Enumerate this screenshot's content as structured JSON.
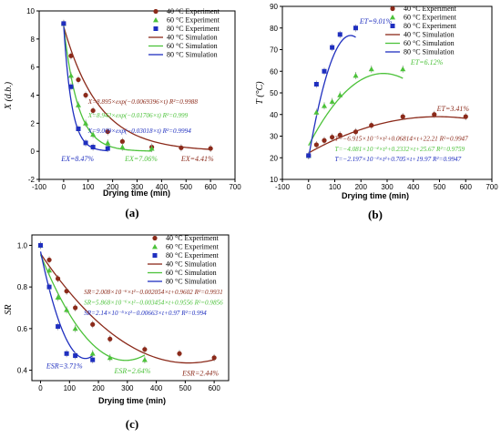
{
  "colors": {
    "s40": "#8B2A1A",
    "s60": "#4CC23A",
    "s80": "#1F2FBF",
    "err": "#9a9a9a"
  },
  "chart_data": [
    {
      "panel": "(a)",
      "type": "scatter",
      "xlabel": "Drying time (min)",
      "ylabel": "X (d.b.)",
      "xlim": [
        -100,
        700
      ],
      "ylim": [
        -2,
        10
      ],
      "xticks": [
        "-100",
        "0",
        "100",
        "200",
        "300",
        "400",
        "500",
        "600",
        "700"
      ],
      "yticks": [
        "-2",
        "0",
        "2",
        "4",
        "6",
        "8",
        "10"
      ],
      "legend_position": "top-right",
      "series": [
        {
          "name": "40 °C Experiment",
          "kind": "experiment",
          "marker": "circle",
          "color": "#8B2A1A",
          "x": [
            0,
            30,
            60,
            90,
            120,
            180,
            240,
            360,
            480,
            600
          ],
          "y": [
            9.1,
            6.8,
            5.1,
            4.0,
            2.9,
            1.4,
            0.7,
            0.3,
            0.25,
            0.2
          ]
        },
        {
          "name": "60 °C Experiment",
          "kind": "experiment",
          "marker": "triangle",
          "color": "#4CC23A",
          "x": [
            0,
            30,
            60,
            90,
            120,
            180,
            240,
            360
          ],
          "y": [
            9.1,
            5.4,
            3.3,
            2.0,
            1.2,
            0.6,
            0.3,
            0.2
          ]
        },
        {
          "name": "80 °C Experiment",
          "kind": "experiment",
          "marker": "square",
          "color": "#1F2FBF",
          "x": [
            0,
            30,
            60,
            90,
            120,
            180
          ],
          "y": [
            9.1,
            4.6,
            1.6,
            0.6,
            0.3,
            0.2
          ]
        },
        {
          "name": "40 °C Simulation",
          "kind": "simulation",
          "color": "#8B2A1A",
          "model": "exp",
          "a": 8.895,
          "k": 0.0069396,
          "tmax": 600
        },
        {
          "name": "60 °C Simulation",
          "kind": "simulation",
          "color": "#4CC23A",
          "model": "exp",
          "a": 8.942,
          "k": 0.01706,
          "tmax": 360
        },
        {
          "name": "80 °C Simulation",
          "kind": "simulation",
          "color": "#1F2FBF",
          "model": "exp",
          "a": 9.009,
          "k": 0.03018,
          "tmax": 180
        }
      ],
      "equations": [
        {
          "text": "X=8.895×exp(−0.0069396×t)   R²=0.9988",
          "color": "#8B2A1A",
          "at": [
            100,
            3.4
          ]
        },
        {
          "text": "X=8.942×exp(−0.01706×t)   R²=0.999",
          "color": "#4CC23A",
          "at": [
            100,
            2.4
          ]
        },
        {
          "text": "X=9.009×exp(−0.03018×t)   R²=0.9994",
          "color": "#1F2FBF",
          "at": [
            100,
            1.3
          ]
        }
      ],
      "annotations": [
        {
          "text": "EX=8.47%",
          "color": "#1F2FBF",
          "at": [
            -10,
            -0.7
          ]
        },
        {
          "text": "EX=7.06%",
          "color": "#4CC23A",
          "at": [
            250,
            -0.7
          ]
        },
        {
          "text": "EX=4.41%",
          "color": "#8B2A1A",
          "at": [
            480,
            -0.7
          ]
        }
      ]
    },
    {
      "panel": "(b)",
      "type": "scatter",
      "xlabel": "Drying time (min)",
      "ylabel": "T (°C)",
      "xlim": [
        -100,
        700
      ],
      "ylim": [
        10,
        90
      ],
      "xticks": [
        "-100",
        "0",
        "100",
        "200",
        "300",
        "400",
        "500",
        "600",
        "700"
      ],
      "yticks": [
        "10",
        "20",
        "30",
        "40",
        "50",
        "60",
        "70",
        "80",
        "90"
      ],
      "legend_position": "top-right",
      "series": [
        {
          "name": "40 °C Experiment",
          "kind": "experiment",
          "marker": "circle",
          "color": "#8B2A1A",
          "x": [
            0,
            30,
            60,
            90,
            120,
            180,
            240,
            360,
            480,
            600
          ],
          "y": [
            21,
            26,
            28,
            29.5,
            30.5,
            32,
            35,
            39,
            40,
            39
          ]
        },
        {
          "name": "60 °C Experiment",
          "kind": "experiment",
          "marker": "triangle",
          "color": "#4CC23A",
          "x": [
            0,
            30,
            60,
            90,
            120,
            180,
            240,
            360
          ],
          "y": [
            21,
            41,
            44,
            46,
            49,
            58,
            61,
            61
          ]
        },
        {
          "name": "80 °C Experiment",
          "kind": "experiment",
          "marker": "square",
          "color": "#1F2FBF",
          "x": [
            0,
            30,
            60,
            90,
            120,
            180
          ],
          "y": [
            21,
            54,
            60,
            71,
            77,
            80
          ]
        },
        {
          "name": "40 °C Simulation",
          "kind": "simulation",
          "color": "#8B2A1A",
          "model": "poly2",
          "c2": -6.915e-05,
          "c1": 0.06814,
          "c0": 22.21,
          "tmax": 600
        },
        {
          "name": "60 °C Simulation",
          "kind": "simulation",
          "color": "#4CC23A",
          "model": "poly2",
          "c2": -0.0004081,
          "c1": 0.2332,
          "c0": 25.67,
          "tmax": 360
        },
        {
          "name": "80 °C Simulation",
          "kind": "simulation",
          "color": "#1F2FBF",
          "model": "poly2",
          "c2": -0.002197,
          "c1": 0.705,
          "c0": 19.97,
          "tmax": 180
        }
      ],
      "equations": [
        {
          "text": "T=−6.915×10⁻⁵×t²+0.06814×t+22.21   R²=0.9947",
          "color": "#8B2A1A",
          "at": [
            100,
            28
          ]
        },
        {
          "text": "T=−4.081×10⁻⁴×t²+0.2332×t+25.67   R²=0.9759",
          "color": "#4CC23A",
          "at": [
            100,
            23
          ]
        },
        {
          "text": "T=−2.197×10⁻³×t²+0.705×t+19.97   R²=0.9947",
          "color": "#1F2FBF",
          "at": [
            100,
            18.5
          ]
        }
      ],
      "annotations": [
        {
          "text": "ET=9.01%",
          "color": "#1F2FBF",
          "at": [
            195,
            82
          ]
        },
        {
          "text": "ET=6.12%",
          "color": "#4CC23A",
          "at": [
            390,
            63
          ]
        },
        {
          "text": "ET=3.41%",
          "color": "#8B2A1A",
          "at": [
            490,
            41.5
          ]
        }
      ]
    },
    {
      "panel": "(c)",
      "type": "scatter",
      "xlabel": "Drying time (min)",
      "ylabel": "SR",
      "xlim": [
        -30,
        650
      ],
      "ylim": [
        0.35,
        1.05
      ],
      "xticks": [
        "0",
        "100",
        "200",
        "300",
        "400",
        "500",
        "600"
      ],
      "yticks": [
        "0.4",
        "0.6",
        "0.8",
        "1.0"
      ],
      "legend_position": "top-right",
      "series": [
        {
          "name": "40 °C Experiment",
          "kind": "experiment",
          "marker": "circle",
          "color": "#8B2A1A",
          "x": [
            0,
            30,
            60,
            90,
            120,
            180,
            240,
            360,
            480,
            600
          ],
          "y": [
            1.0,
            0.93,
            0.84,
            0.78,
            0.7,
            0.62,
            0.55,
            0.5,
            0.48,
            0.46
          ]
        },
        {
          "name": "60 °C Experiment",
          "kind": "experiment",
          "marker": "triangle",
          "color": "#4CC23A",
          "x": [
            0,
            30,
            60,
            90,
            120,
            180,
            240,
            360
          ],
          "y": [
            1.0,
            0.88,
            0.75,
            0.69,
            0.6,
            0.48,
            0.46,
            0.45
          ]
        },
        {
          "name": "80 °C Experiment",
          "kind": "experiment",
          "marker": "square",
          "color": "#1F2FBF",
          "x": [
            0,
            30,
            60,
            90,
            120,
            180
          ],
          "y": [
            1.0,
            0.8,
            0.61,
            0.48,
            0.47,
            0.45
          ]
        },
        {
          "name": "40 °C Simulation",
          "kind": "simulation",
          "color": "#8B2A1A",
          "model": "poly2",
          "c2": 2.008e-06,
          "c1": -0.002054,
          "c0": 0.9602,
          "tmax": 600
        },
        {
          "name": "60 °C Simulation",
          "kind": "simulation",
          "color": "#4CC23A",
          "model": "poly2",
          "c2": 5.868e-06,
          "c1": -0.003454,
          "c0": 0.9556,
          "tmax": 360
        },
        {
          "name": "80 °C Simulation",
          "kind": "simulation",
          "color": "#1F2FBF",
          "model": "poly2",
          "c2": 2.14e-05,
          "c1": -0.00663,
          "c0": 0.97,
          "tmax": 180
        }
      ],
      "equations": [
        {
          "text": "SR=2.008×10⁻⁶×t²−0.002054×t+0.9602   R²=0.9931",
          "color": "#8B2A1A",
          "at": [
            150,
            0.765
          ]
        },
        {
          "text": "SR=5.868×10⁻⁶×t²−0.003454×t+0.9556   R²=0.9856",
          "color": "#4CC23A",
          "at": [
            150,
            0.715
          ]
        },
        {
          "text": "SR=2.14×10⁻⁵×t²−0.00663×t+0.97   R²=0.994",
          "color": "#1F2FBF",
          "at": [
            150,
            0.665
          ]
        }
      ],
      "annotations": [
        {
          "text": "ESR=3.71%",
          "color": "#1F2FBF",
          "at": [
            20,
            0.41
          ]
        },
        {
          "text": "ESR=2.64%",
          "color": "#4CC23A",
          "at": [
            255,
            0.385
          ]
        },
        {
          "text": "ESR=2.44%",
          "color": "#8B2A1A",
          "at": [
            490,
            0.375
          ]
        }
      ]
    }
  ]
}
